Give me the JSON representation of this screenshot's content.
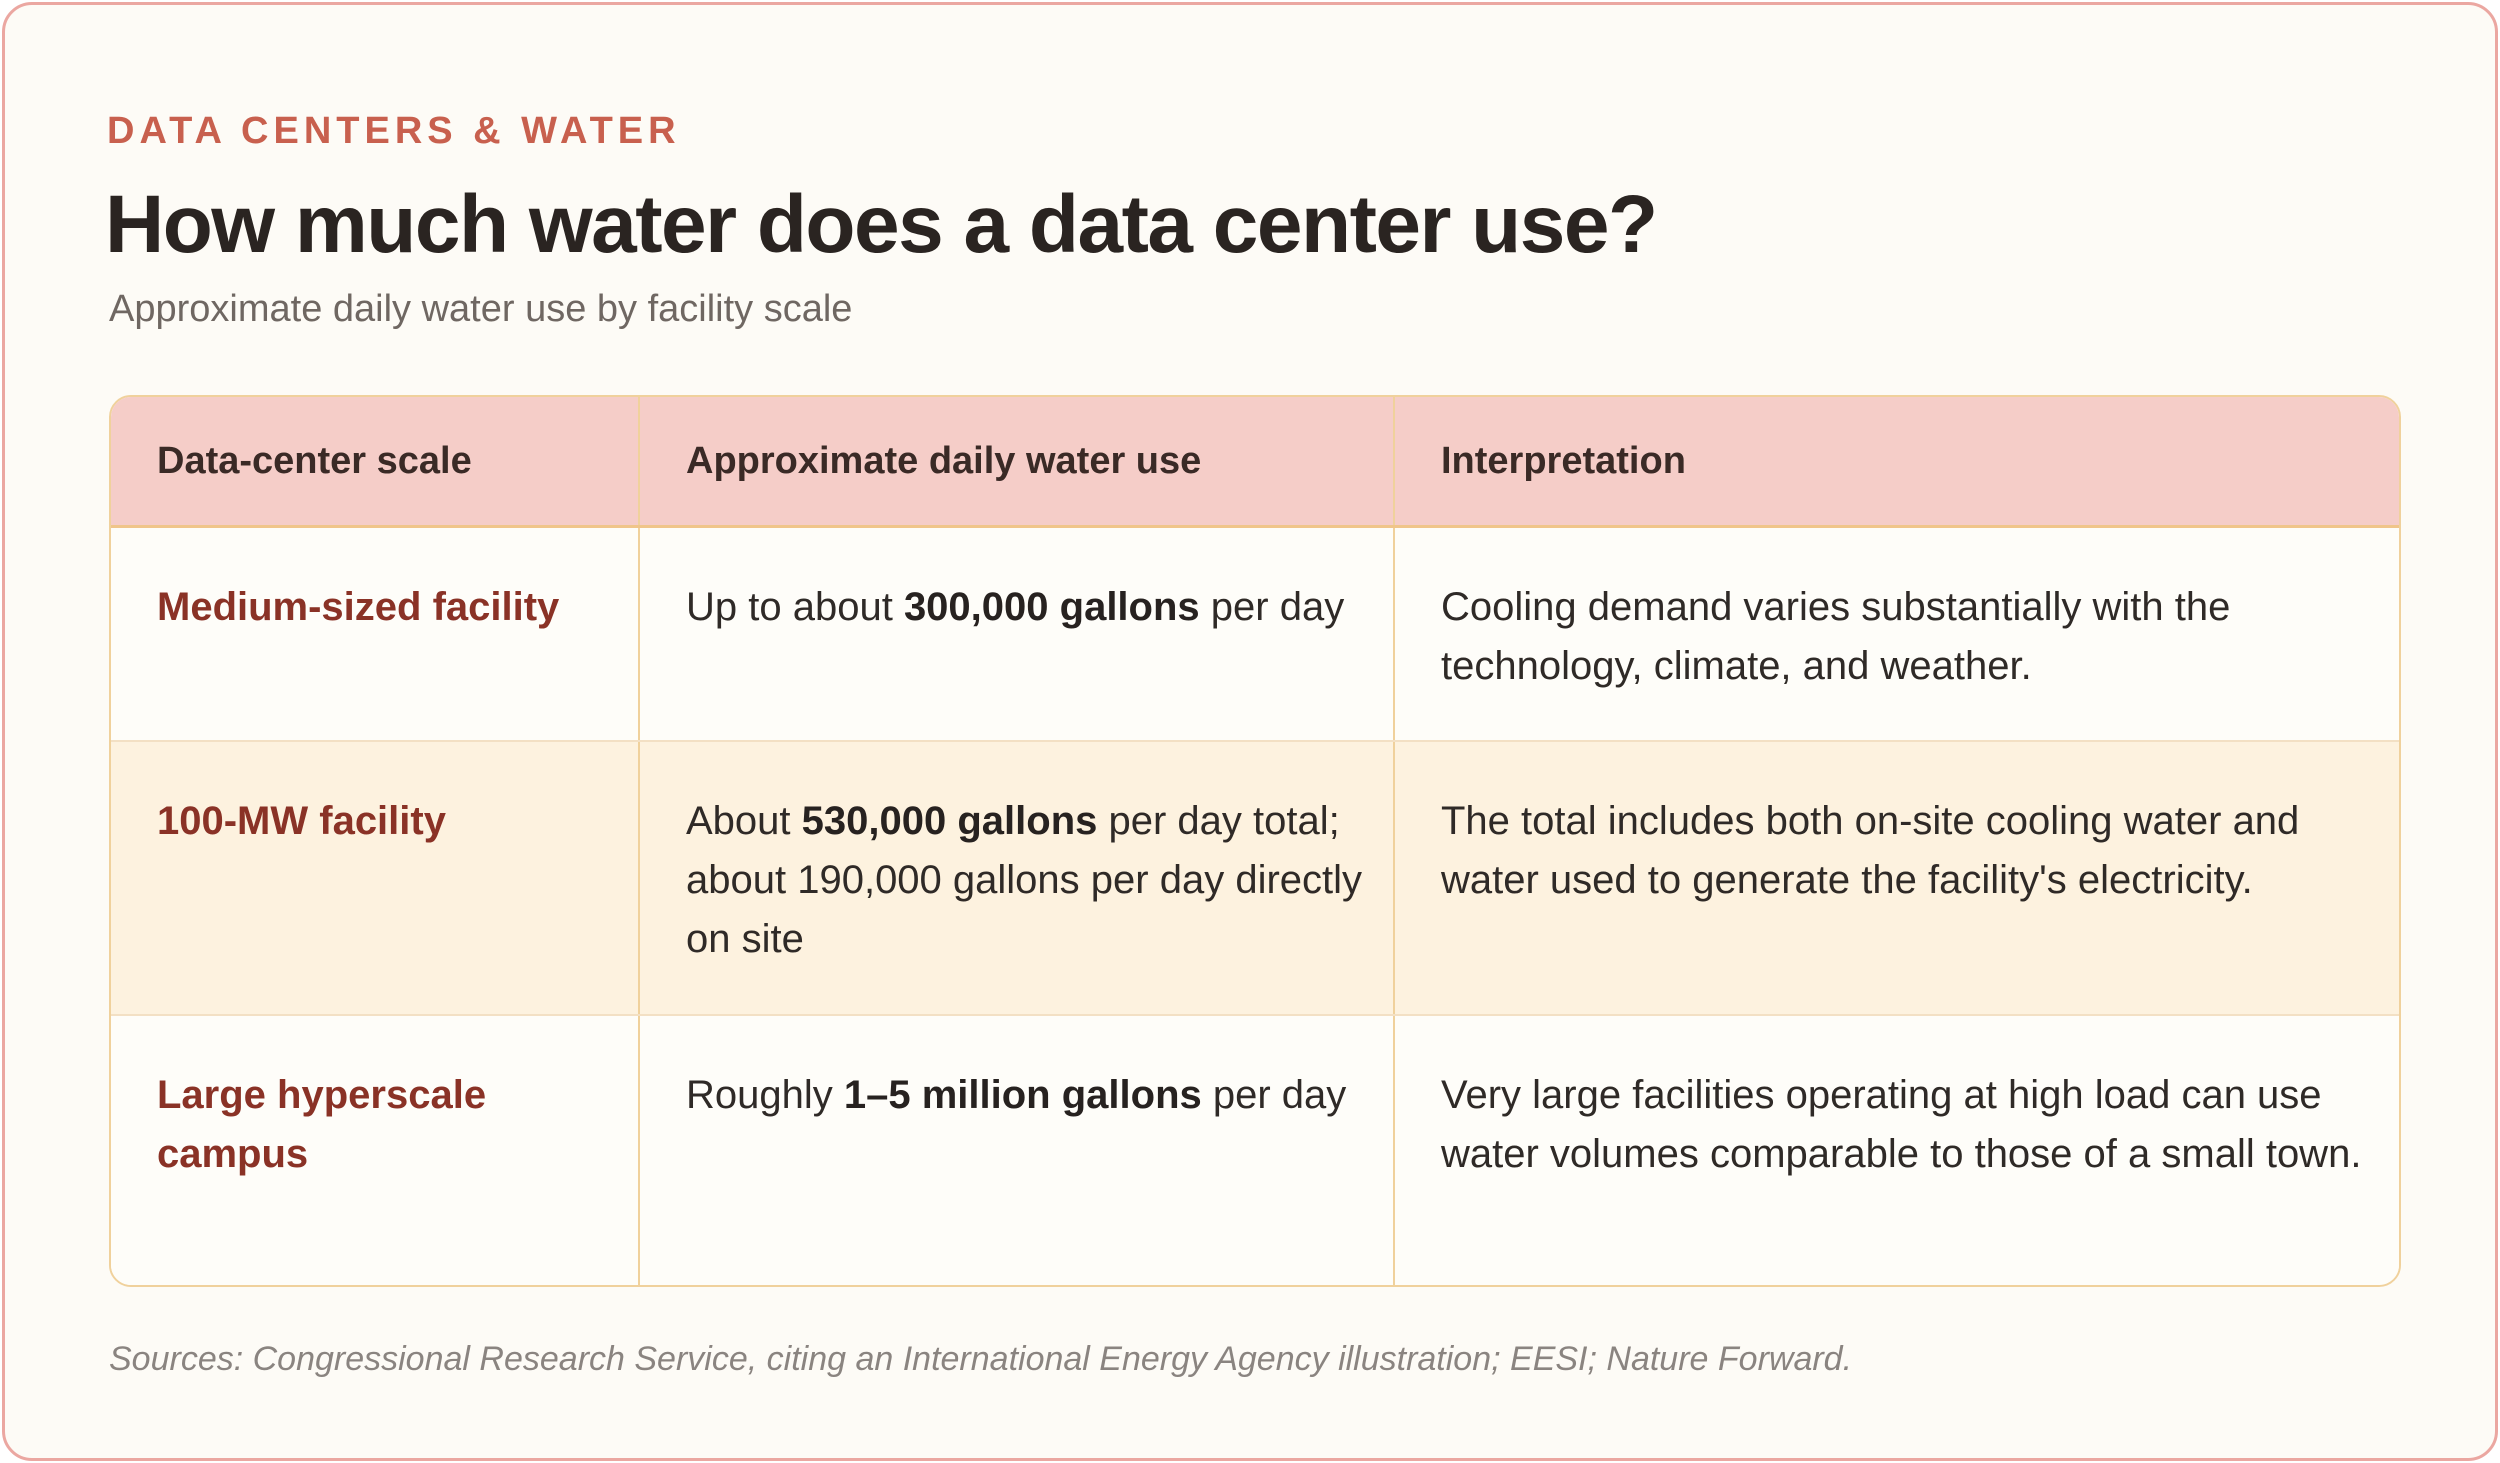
{
  "eyebrow": "DATA CENTERS & WATER",
  "title": "How much water does a data center use?",
  "subtitle": "Approximate daily water use by facility scale",
  "table": {
    "headers": [
      "Data-center scale",
      "Approximate daily water use",
      "Interpretation"
    ],
    "rows": [
      {
        "scale": "Medium-sized facility",
        "use_pre": "Up to about ",
        "use_bold": "300,000 gallons",
        "use_post": " per day",
        "interpretation": "Cooling demand varies substantially with the technology, climate, and weather."
      },
      {
        "scale": "100-MW facility",
        "use_pre": "About ",
        "use_bold": "530,000 gallons",
        "use_post": " per day total; about 190,000 gallons per day directly on site",
        "interpretation": "The total includes both on-site cooling water and water used to generate the facility's electricity."
      },
      {
        "scale": "Large hyperscale campus",
        "use_pre": "Roughly ",
        "use_bold": "1–5 million gallons",
        "use_post": " per day",
        "interpretation": "Very large facilities operating at high load can use water volumes comparable to those of a small town."
      }
    ]
  },
  "sources": "Sources: Congressional Research Service, citing an International Energy Agency illustration; EESI; Nature Forward.",
  "colors": {
    "card_background": "#fdfbf6",
    "card_border": "#eba7a1",
    "eyebrow": "#c8604e",
    "header_row": "#f5cdc8",
    "highlight_row": "#fdf2df",
    "scale_text": "#8a3226"
  }
}
